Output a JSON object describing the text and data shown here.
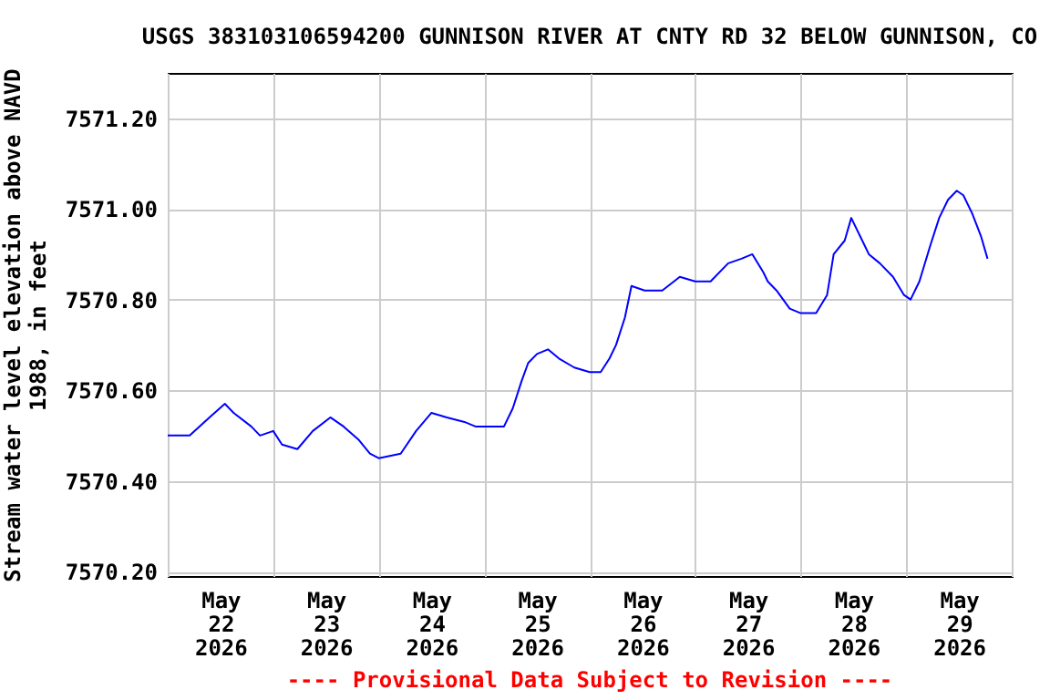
{
  "chart_data": {
    "type": "line",
    "title": "USGS 383103106594200 GUNNISON RIVER AT CNTY RD 32 BELOW GUNNISON, CO",
    "ylabel": "Stream water level elevation above NAVD\n1988, in feet",
    "annotations": [
      "---- Provisional Data Subject to Revision ----"
    ],
    "x": [
      "2026-05-22T00:00",
      "2026-05-22T05:00",
      "2026-05-22T09:30",
      "2026-05-22T13:00",
      "2026-05-22T15:00",
      "2026-05-22T19:00",
      "2026-05-22T21:00",
      "2026-05-23T00:00",
      "2026-05-23T02:00",
      "2026-05-23T05:30",
      "2026-05-23T09:00",
      "2026-05-23T13:00",
      "2026-05-23T16:00",
      "2026-05-23T19:30",
      "2026-05-23T22:00",
      "2026-05-24T00:00",
      "2026-05-24T05:00",
      "2026-05-24T08:30",
      "2026-05-24T12:00",
      "2026-05-24T15:30",
      "2026-05-24T19:30",
      "2026-05-24T22:00",
      "2026-05-25T00:00",
      "2026-05-25T04:30",
      "2026-05-25T06:30",
      "2026-05-25T08:30",
      "2026-05-25T10:00",
      "2026-05-25T12:00",
      "2026-05-25T14:30",
      "2026-05-25T17:00",
      "2026-05-25T20:30",
      "2026-05-26T00:00",
      "2026-05-26T02:30",
      "2026-05-26T04:30",
      "2026-05-26T06:00",
      "2026-05-26T08:00",
      "2026-05-26T09:30",
      "2026-05-26T12:30",
      "2026-05-26T16:30",
      "2026-05-26T20:30",
      "2026-05-27T00:00",
      "2026-05-27T03:30",
      "2026-05-27T07:30",
      "2026-05-27T10:30",
      "2026-05-27T13:00",
      "2026-05-27T15:30",
      "2026-05-27T16:30",
      "2026-05-27T18:30",
      "2026-05-27T21:30",
      "2026-05-28T00:00",
      "2026-05-28T03:30",
      "2026-05-28T06:00",
      "2026-05-28T07:30",
      "2026-05-28T10:00",
      "2026-05-28T11:30",
      "2026-05-28T13:30",
      "2026-05-28T15:30",
      "2026-05-28T18:00",
      "2026-05-28T21:00",
      "2026-05-28T23:30",
      "2026-05-29T01:00",
      "2026-05-29T03:00",
      "2026-05-29T05:30",
      "2026-05-29T07:30",
      "2026-05-29T09:30",
      "2026-05-29T11:30",
      "2026-05-29T13:00",
      "2026-05-29T15:00",
      "2026-05-29T17:00",
      "2026-05-29T18:30"
    ],
    "series": [
      {
        "color": "#0000ff",
        "values": [
          7570.5,
          7570.5,
          7570.54,
          7570.57,
          7570.55,
          7570.52,
          7570.5,
          7570.51,
          7570.48,
          7570.47,
          7570.51,
          7570.54,
          7570.52,
          7570.49,
          7570.46,
          7570.45,
          7570.46,
          7570.51,
          7570.55,
          7570.54,
          7570.53,
          7570.52,
          7570.52,
          7570.52,
          7570.56,
          7570.62,
          7570.66,
          7570.68,
          7570.69,
          7570.67,
          7570.65,
          7570.64,
          7570.64,
          7570.67,
          7570.7,
          7570.76,
          7570.83,
          7570.82,
          7570.82,
          7570.85,
          7570.84,
          7570.84,
          7570.88,
          7570.89,
          7570.9,
          7570.86,
          7570.84,
          7570.82,
          7570.78,
          7570.77,
          7570.77,
          7570.81,
          7570.9,
          7570.93,
          7570.98,
          7570.94,
          7570.9,
          7570.88,
          7570.85,
          7570.81,
          7570.8,
          7570.84,
          7570.92,
          7570.98,
          7571.02,
          7571.04,
          7571.03,
          7570.99,
          7570.94,
          7570.89
        ]
      }
    ],
    "xlim": [
      "2026-05-22T00:00",
      "2026-05-30T00:00"
    ],
    "xticks": [
      {
        "value": "2026-05-22T00:00",
        "label": null
      },
      {
        "value": "2026-05-22T12:00",
        "label": "May\n22\n2026"
      },
      {
        "value": "2026-05-23T00:00",
        "label": null
      },
      {
        "value": "2026-05-23T12:00",
        "label": "May\n23\n2026"
      },
      {
        "value": "2026-05-24T00:00",
        "label": null
      },
      {
        "value": "2026-05-24T12:00",
        "label": "May\n24\n2026"
      },
      {
        "value": "2026-05-25T00:00",
        "label": null
      },
      {
        "value": "2026-05-25T12:00",
        "label": "May\n25\n2026"
      },
      {
        "value": "2026-05-26T00:00",
        "label": null
      },
      {
        "value": "2026-05-26T12:00",
        "label": "May\n26\n2026"
      },
      {
        "value": "2026-05-27T00:00",
        "label": null
      },
      {
        "value": "2026-05-27T12:00",
        "label": "May\n27\n2026"
      },
      {
        "value": "2026-05-28T00:00",
        "label": null
      },
      {
        "value": "2026-05-28T12:00",
        "label": "May\n28\n2026"
      },
      {
        "value": "2026-05-29T00:00",
        "label": null
      },
      {
        "value": "2026-05-29T12:00",
        "label": "May\n29\n2026"
      },
      {
        "value": "2026-05-30T00:00",
        "label": null
      }
    ],
    "ylim": [
      7570.19,
      7571.3
    ],
    "yticks": [
      {
        "value": 7570.2,
        "label": "7570.20"
      },
      {
        "value": 7570.4,
        "label": "7570.40"
      },
      {
        "value": 7570.6,
        "label": "7570.60"
      },
      {
        "value": 7570.8,
        "label": "7570.80"
      },
      {
        "value": 7571.0,
        "label": "7571.00"
      },
      {
        "value": 7571.2,
        "label": "7571.20"
      }
    ],
    "grid": true,
    "legend": false
  }
}
